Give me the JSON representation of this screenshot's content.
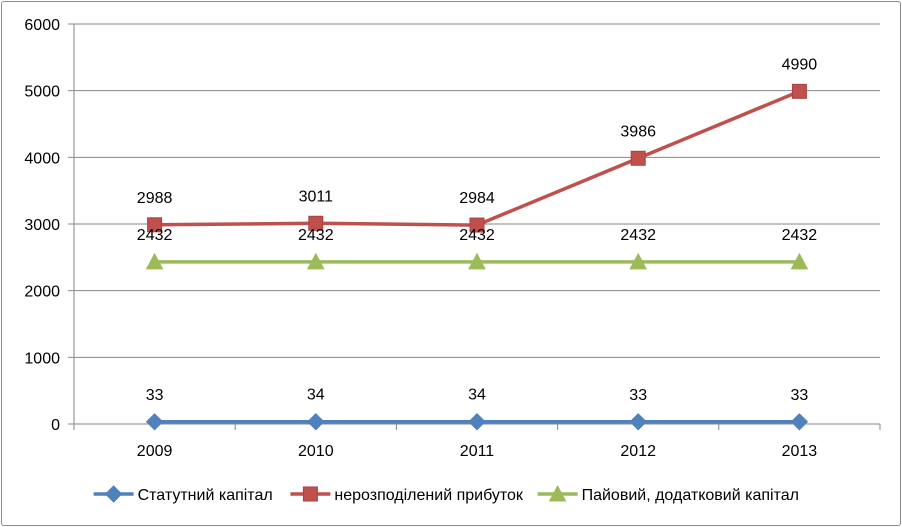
{
  "chart_data": {
    "type": "line",
    "title": "",
    "xlabel": "",
    "ylabel": "",
    "categories": [
      "2009",
      "2010",
      "2011",
      "2012",
      "2013"
    ],
    "ylim": [
      0,
      6000
    ],
    "yticks": [
      0,
      1000,
      2000,
      3000,
      4000,
      5000,
      6000
    ],
    "ytick_labels": [
      "0",
      "1000",
      "2000",
      "3000",
      "4000",
      "5000",
      "6000"
    ],
    "grid": true,
    "legend_position": "bottom",
    "series": [
      {
        "name": "Статутний капітал",
        "values": [
          33,
          34,
          34,
          33,
          33
        ],
        "labels": [
          "33",
          "34",
          "34",
          "33",
          "33"
        ],
        "color": "#4f81bd",
        "marker": "diamond"
      },
      {
        "name": "нерозподілений прибуток",
        "values": [
          2988,
          3011,
          2984,
          3986,
          4990
        ],
        "labels": [
          "2988",
          "3011",
          "2984",
          "3986",
          "4990"
        ],
        "color": "#c0504d",
        "marker": "square"
      },
      {
        "name": "Пайовий, додатковий капітал",
        "values": [
          2432,
          2432,
          2432,
          2432,
          2432
        ],
        "labels": [
          "2432",
          "2432",
          "2432",
          "2432",
          "2432"
        ],
        "color": "#9bbb59",
        "marker": "triangle"
      }
    ]
  }
}
